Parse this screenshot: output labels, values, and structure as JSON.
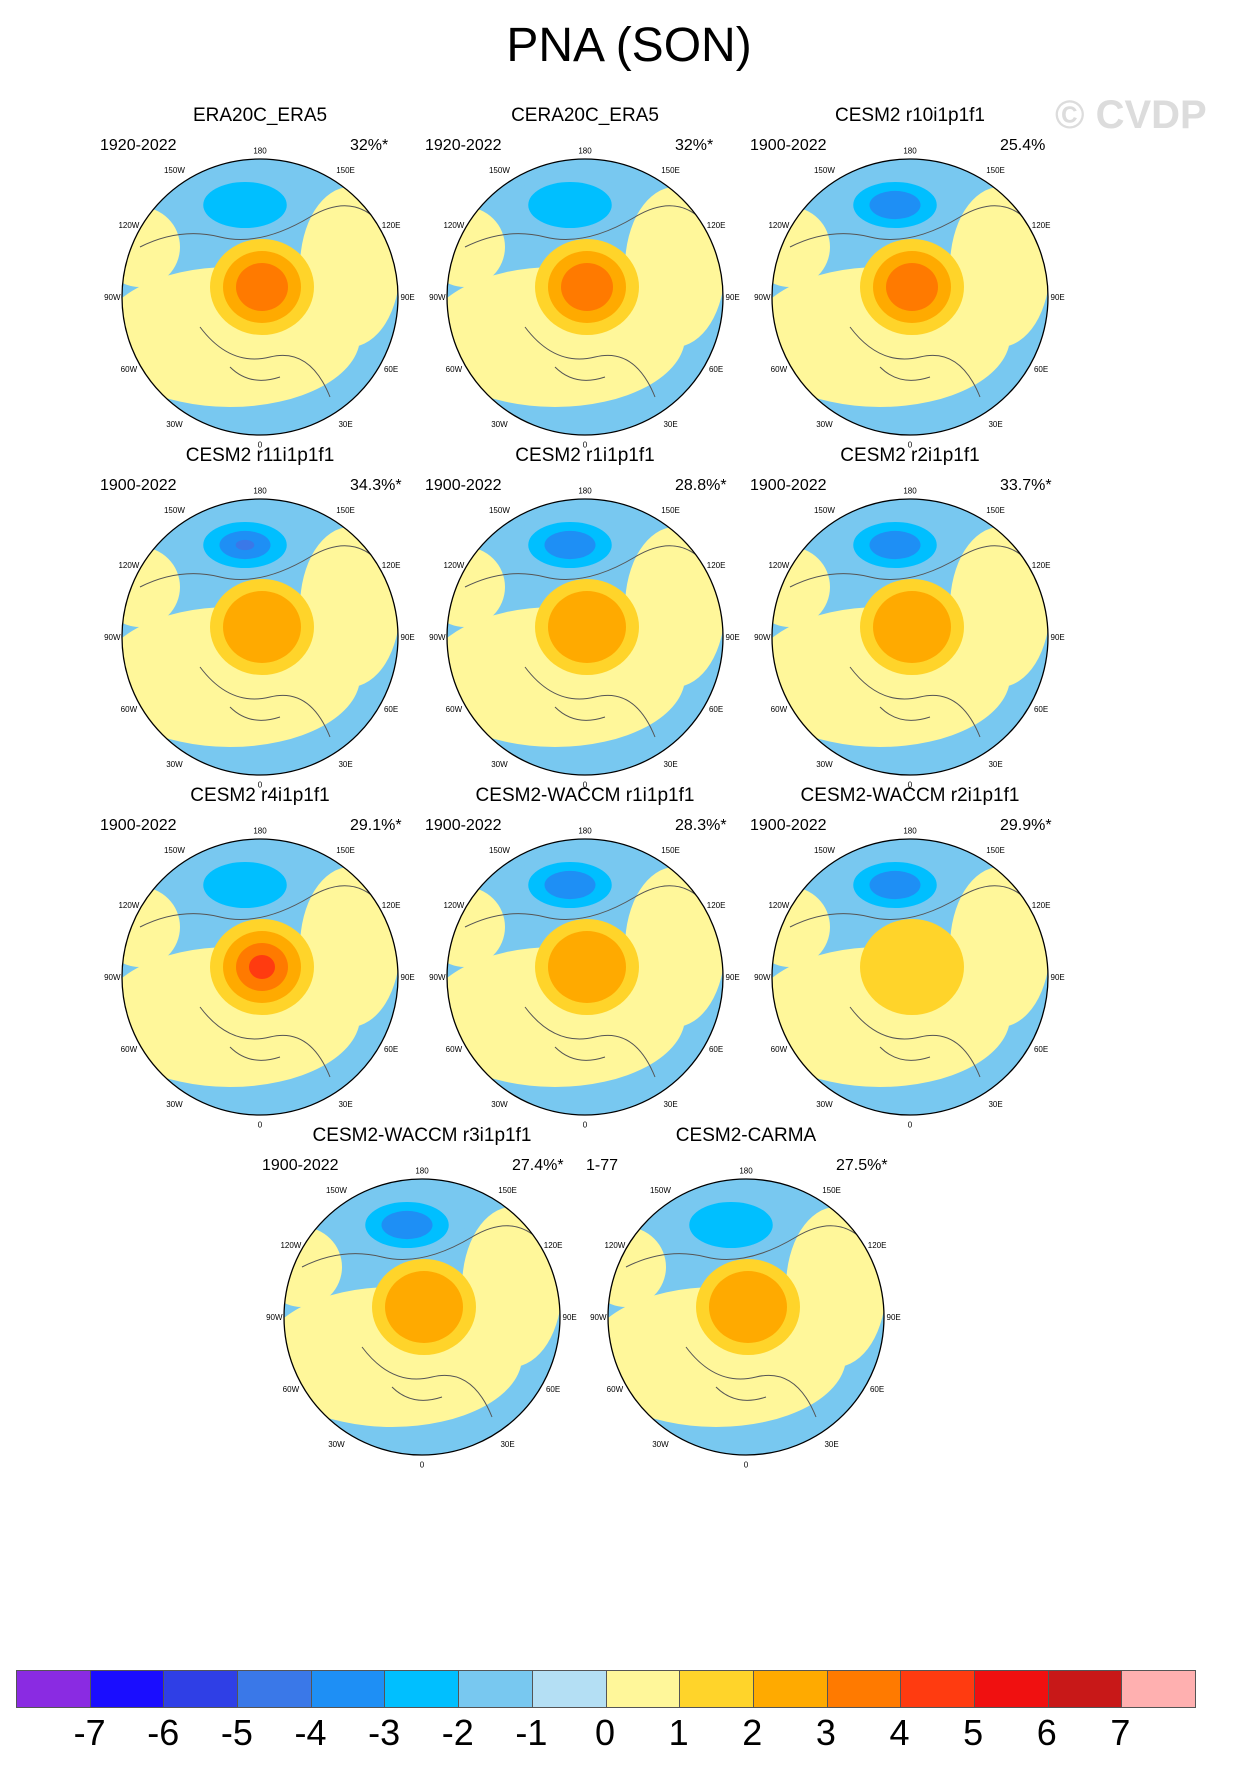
{
  "title": "PNA (SON)",
  "watermark": "© CVDP",
  "longitude_labels": [
    "180",
    "150W",
    "150E",
    "120W",
    "120E",
    "90W",
    "90E",
    "60W",
    "60E",
    "30W",
    "30E",
    "0"
  ],
  "chart_data": {
    "type": "polar-map",
    "variable": "PNA (SON)",
    "panels": [
      {
        "name": "ERA20C_ERA5",
        "years": "1920-2022",
        "pct": "32%*",
        "low": -2,
        "high": 3
      },
      {
        "name": "CERA20C_ERA5",
        "years": "1920-2022",
        "pct": "32%*",
        "low": -2,
        "high": 3
      },
      {
        "name": "CESM2 r10i1p1f1",
        "years": "1900-2022",
        "pct": "25.4%",
        "low": -3,
        "high": 3
      },
      {
        "name": "CESM2 r11i1p1f1",
        "years": "1900-2022",
        "pct": "34.3%*",
        "low": -4,
        "high": 2
      },
      {
        "name": "CESM2 r1i1p1f1",
        "years": "1900-2022",
        "pct": "28.8%*",
        "low": -3,
        "high": 2
      },
      {
        "name": "CESM2 r2i1p1f1",
        "years": "1900-2022",
        "pct": "33.7%*",
        "low": -3,
        "high": 2
      },
      {
        "name": "CESM2 r4i1p1f1",
        "years": "1900-2022",
        "pct": "29.1%*",
        "low": -2,
        "high": 4
      },
      {
        "name": "CESM2-WACCM r1i1p1f1",
        "years": "1900-2022",
        "pct": "28.3%*",
        "low": -3,
        "high": 2
      },
      {
        "name": "CESM2-WACCM r2i1p1f1",
        "years": "1900-2022",
        "pct": "29.9%*",
        "low": -3,
        "high": 1
      },
      {
        "name": "CESM2-WACCM r3i1p1f1",
        "years": "1900-2022",
        "pct": "27.4%*",
        "low": -3,
        "high": 2
      },
      {
        "name": "CESM2-CARMA",
        "years": "1-77",
        "pct": "27.5%*",
        "low": -2,
        "high": 2
      }
    ],
    "colorbar": {
      "labels": [
        "-7",
        "-6",
        "-5",
        "-4",
        "-3",
        "-2",
        "-1",
        "0",
        "1",
        "2",
        "3",
        "4",
        "5",
        "6",
        "7"
      ],
      "colors": [
        "#8a2be2",
        "#1a0dff",
        "#2f3fe6",
        "#3a78e8",
        "#1e8ff5",
        "#00bfff",
        "#78c8f0",
        "#b4dff4",
        "#fff79a",
        "#ffd42a",
        "#ffaa00",
        "#ff7a00",
        "#ff3b10",
        "#f01010",
        "#c81818",
        "#ffb0b0"
      ]
    }
  }
}
